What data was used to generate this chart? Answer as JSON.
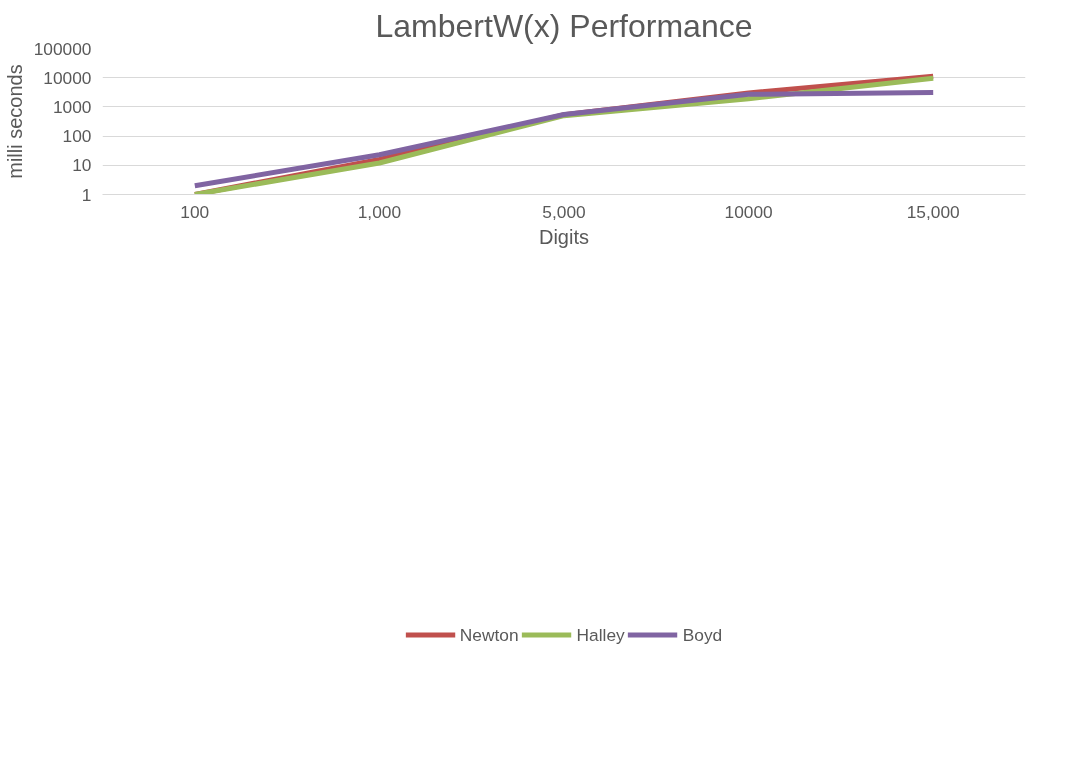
{
  "chart_data": {
    "type": "line",
    "title": "LambertW(x) Performance",
    "xlabel": "Digits",
    "ylabel": "milli seconds",
    "categories": [
      "100",
      "1,000",
      "5,000",
      "10000",
      "15,000"
    ],
    "series": [
      {
        "name": "Newton",
        "color": "#c0504d",
        "values": [
          1,
          16,
          540,
          3000,
          11200
        ]
      },
      {
        "name": "Halley",
        "color": "#9bbb59",
        "values": [
          1,
          12,
          500,
          1900,
          9500
        ]
      },
      {
        "name": "Boyd",
        "color": "#8064a2",
        "values": [
          2,
          23,
          550,
          2700,
          3100
        ]
      }
    ],
    "log": true,
    "ylim": [
      1,
      100000
    ],
    "yticks": [
      1,
      10,
      100,
      1000,
      10000,
      100000
    ],
    "grid": "y",
    "legend": "bottom",
    "marker": "none",
    "line_style": "solid"
  }
}
